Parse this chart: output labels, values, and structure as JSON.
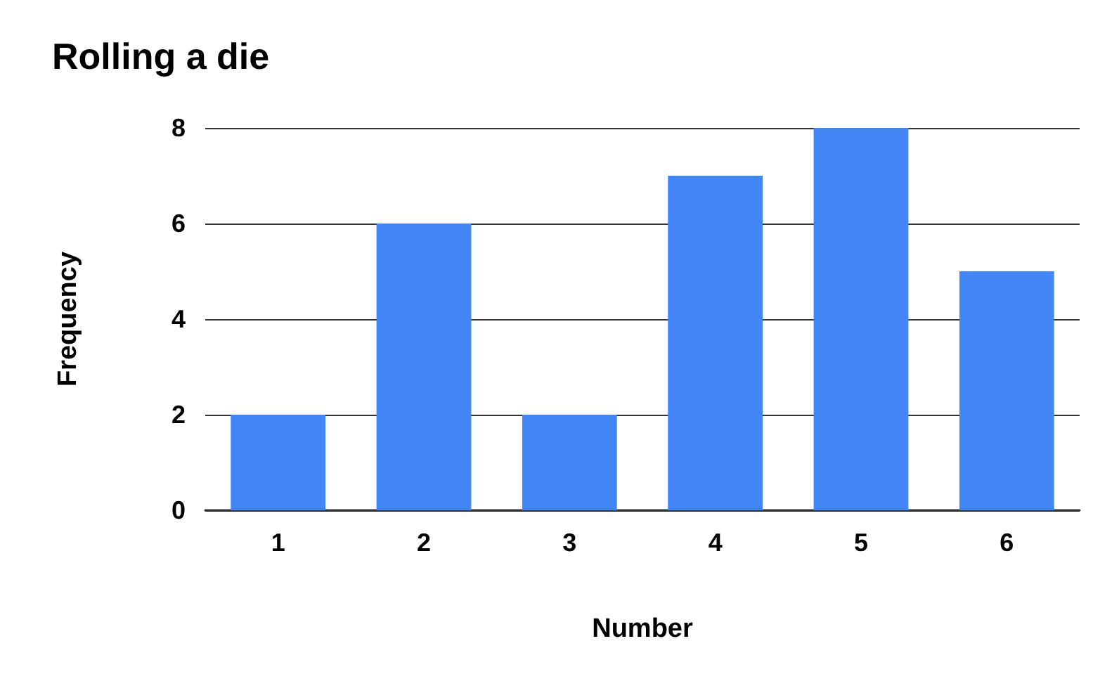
{
  "chart_data": {
    "type": "bar",
    "title": "Rolling a die",
    "xlabel": "Number",
    "ylabel": "Frequency",
    "categories": [
      "1",
      "2",
      "3",
      "4",
      "5",
      "6"
    ],
    "values": [
      2,
      6,
      2,
      7,
      8,
      5
    ],
    "color": "#4285f4",
    "ylim": [
      0,
      8
    ],
    "yticks": [
      0,
      2,
      4,
      6,
      8
    ],
    "grid": "y"
  }
}
